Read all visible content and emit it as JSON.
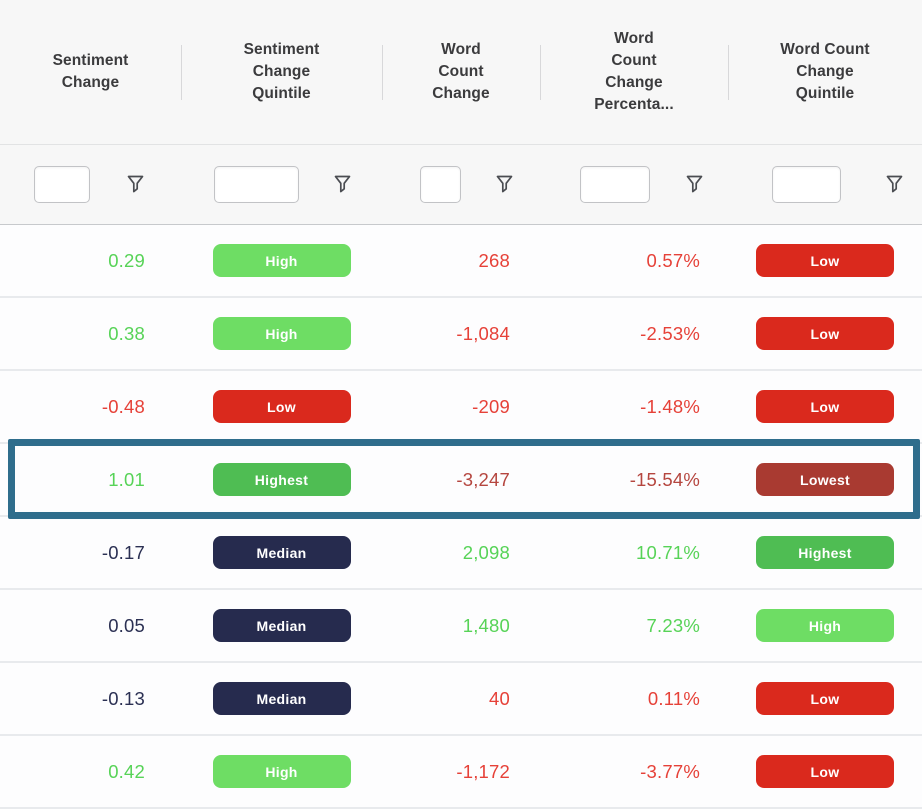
{
  "table": {
    "columns": [
      {
        "key": "sentiment-change",
        "label": "Sentiment Change",
        "type": "number"
      },
      {
        "key": "sentiment-change-quintile",
        "label": "Sentiment Change Quintile",
        "type": "badge"
      },
      {
        "key": "word-count-change",
        "label": "Word Count Change",
        "type": "number"
      },
      {
        "key": "word-count-change-percent",
        "label": "Word Count Change Percenta...",
        "type": "number"
      },
      {
        "key": "word-count-change-quintile",
        "label": "Word Count Change Quintile",
        "type": "badge"
      }
    ],
    "filter_row": {
      "icon": "funnel-icon",
      "inputs": [
        {
          "value": "",
          "placeholder": ""
        },
        {
          "value": "",
          "placeholder": ""
        },
        {
          "value": "",
          "placeholder": ""
        },
        {
          "value": "",
          "placeholder": ""
        },
        {
          "value": "",
          "placeholder": ""
        }
      ]
    },
    "rows": [
      {
        "highlighted": false,
        "cells": [
          {
            "text": "0.29",
            "color": "green"
          },
          {
            "badge": "High",
            "variant": "high"
          },
          {
            "text": "268",
            "color": "red"
          },
          {
            "text": "0.57%",
            "color": "red"
          },
          {
            "badge": "Low",
            "variant": "low"
          }
        ]
      },
      {
        "highlighted": false,
        "cells": [
          {
            "text": "0.38",
            "color": "green"
          },
          {
            "badge": "High",
            "variant": "high"
          },
          {
            "text": "-1,084",
            "color": "red"
          },
          {
            "text": "-2.53%",
            "color": "red"
          },
          {
            "badge": "Low",
            "variant": "low"
          }
        ]
      },
      {
        "highlighted": false,
        "cells": [
          {
            "text": "-0.48",
            "color": "red"
          },
          {
            "badge": "Low",
            "variant": "low"
          },
          {
            "text": "-209",
            "color": "red"
          },
          {
            "text": "-1.48%",
            "color": "red"
          },
          {
            "badge": "Low",
            "variant": "low"
          }
        ]
      },
      {
        "highlighted": true,
        "cells": [
          {
            "text": "1.01",
            "color": "green"
          },
          {
            "badge": "Highest",
            "variant": "highest"
          },
          {
            "text": "-3,247",
            "color": "dark_red"
          },
          {
            "text": "-15.54%",
            "color": "dark_red"
          },
          {
            "badge": "Lowest",
            "variant": "lowest"
          }
        ]
      },
      {
        "highlighted": false,
        "cells": [
          {
            "text": "-0.17",
            "color": "navy"
          },
          {
            "badge": "Median",
            "variant": "median"
          },
          {
            "text": "2,098",
            "color": "green"
          },
          {
            "text": "10.71%",
            "color": "green"
          },
          {
            "badge": "Highest",
            "variant": "highest"
          }
        ]
      },
      {
        "highlighted": false,
        "cells": [
          {
            "text": "0.05",
            "color": "navy"
          },
          {
            "badge": "Median",
            "variant": "median"
          },
          {
            "text": "1,480",
            "color": "green"
          },
          {
            "text": "7.23%",
            "color": "green"
          },
          {
            "badge": "High",
            "variant": "high"
          }
        ]
      },
      {
        "highlighted": false,
        "cells": [
          {
            "text": "-0.13",
            "color": "navy"
          },
          {
            "badge": "Median",
            "variant": "median"
          },
          {
            "text": "40",
            "color": "red"
          },
          {
            "text": "0.11%",
            "color": "red"
          },
          {
            "badge": "Low",
            "variant": "low"
          }
        ]
      },
      {
        "highlighted": false,
        "cells": [
          {
            "text": "0.42",
            "color": "green"
          },
          {
            "badge": "High",
            "variant": "high"
          },
          {
            "text": "-1,172",
            "color": "red"
          },
          {
            "text": "-3.77%",
            "color": "red"
          },
          {
            "badge": "Low",
            "variant": "low"
          }
        ]
      }
    ]
  },
  "palette": {
    "green": "#57d357",
    "red": "#e64138",
    "navy": "#2b3053",
    "dark_red": "#b5463f",
    "badge_high": "#6edd64",
    "badge_highest": "#4fbd53",
    "badge_median": "#262b4e",
    "badge_low": "#da291d",
    "badge_lowest": "#a93a31",
    "highlight_border": "#2f6d8c",
    "header_bg": "#f7f7f7",
    "header_text": "#3b3b3d"
  }
}
